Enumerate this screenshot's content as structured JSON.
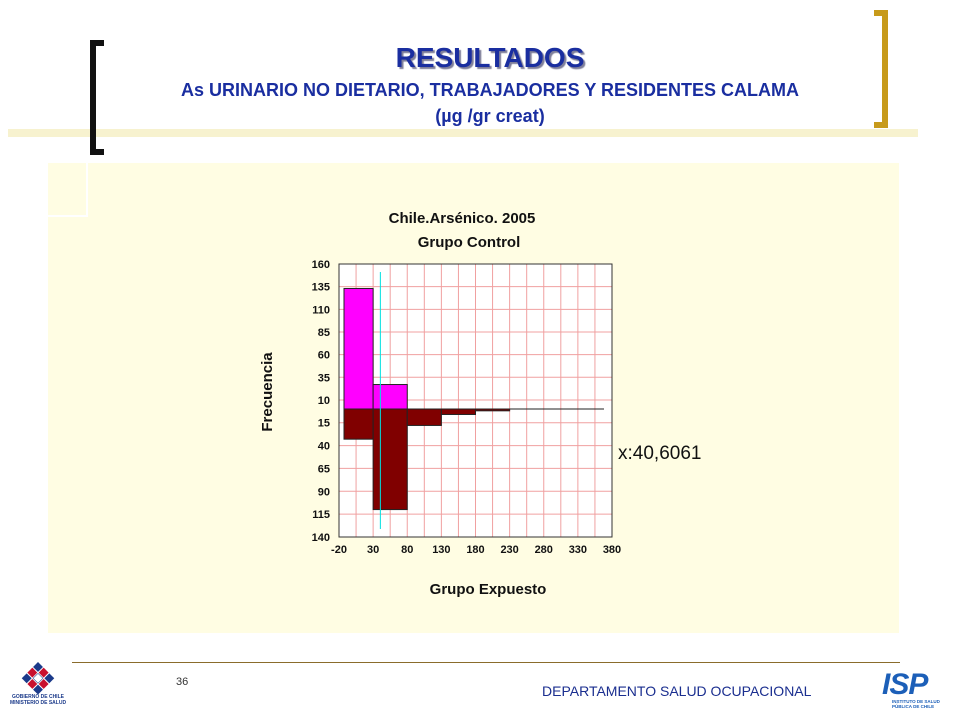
{
  "slide": {
    "title": "RESULTADOS",
    "subtitle": "As URINARIO NO DIETARIO, TRABAJADORES Y RESIDENTES CALAMA",
    "units": "(µg /gr creat)",
    "page_number": "36",
    "footer_department": "DEPARTAMENTO SALUD OCUPACIONAL",
    "logo_left_text": [
      "GOBIERNO DE CHILE",
      "MINISTERIO DE SALUD"
    ],
    "logo_right_mark": "ISP",
    "logo_right_text": [
      "INSTITUTO DE SALUD",
      "PÚBLICA DE CHILE"
    ],
    "colors": {
      "title": "#1a2ea0",
      "panel": "#fffde3",
      "upper_bars": "#ff00ff",
      "lower_bars": "#800000",
      "grid": "#f0a0a0",
      "median_line": "#00e0e0",
      "bracket_left": "#111111",
      "bracket_right": "#c79a1a"
    }
  },
  "chart_data": {
    "type": "bar",
    "subtype": "back-to-back histogram",
    "title": "Chile.Arsénico. 2005",
    "upper_label": "Grupo Control",
    "lower_label": "Grupo Expuesto",
    "ylabel": "Frecuencia",
    "xlim": [
      -20,
      380
    ],
    "x_ticks": [
      "-20",
      "30",
      "80",
      "130",
      "180",
      "230",
      "280",
      "330",
      "380"
    ],
    "upper_y_ticks": [
      "160",
      "135",
      "110",
      "85",
      "60",
      "35",
      "10"
    ],
    "lower_y_ticks": [
      "15",
      "40",
      "65",
      "90",
      "115",
      "140"
    ],
    "upper_ylim": [
      0,
      160
    ],
    "lower_ylim": [
      0,
      140
    ],
    "bin_width": 50,
    "bins": [
      {
        "from": -20,
        "to": 30,
        "control": 133,
        "expuesto": 33
      },
      {
        "from": 30,
        "to": 80,
        "control": 27,
        "expuesto": 110
      },
      {
        "from": 80,
        "to": 130,
        "control": 0,
        "expuesto": 18
      },
      {
        "from": 130,
        "to": 180,
        "control": 0,
        "expuesto": 6
      },
      {
        "from": 180,
        "to": 230,
        "control": 0,
        "expuesto": 2
      },
      {
        "from": 230,
        "to": 280,
        "control": 0,
        "expuesto": 0
      },
      {
        "from": 280,
        "to": 330,
        "control": 0,
        "expuesto": 0
      },
      {
        "from": 330,
        "to": 380,
        "control": 0,
        "expuesto": 0
      }
    ],
    "reference_line_x": 40.6061,
    "annotation": "x:40,6061",
    "grid": true
  }
}
